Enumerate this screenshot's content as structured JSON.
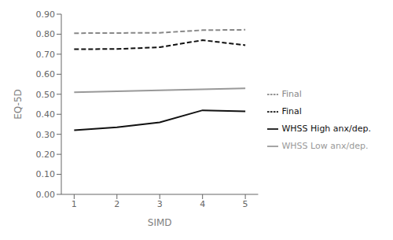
{
  "chart_data": {
    "type": "line",
    "x": [
      1,
      2,
      3,
      4,
      5
    ],
    "xlabel": "SIMD",
    "ylabel": "EQ-5D",
    "xlim": [
      0.7,
      5.3
    ],
    "xticks": [
      1,
      2,
      3,
      4,
      5
    ],
    "ylim": [
      0.0,
      0.9
    ],
    "yticks": [
      {
        "value": 0.0,
        "label": "0.00"
      },
      {
        "value": 0.1,
        "label": "0.10"
      },
      {
        "value": 0.2,
        "label": "0.20"
      },
      {
        "value": 0.3,
        "label": "0.30"
      },
      {
        "value": 0.4,
        "label": "0.40"
      },
      {
        "value": 0.5,
        "label": "0.50"
      },
      {
        "value": 0.6,
        "label": "0.60"
      },
      {
        "value": 0.7,
        "label": "0.70"
      },
      {
        "value": 0.8,
        "label": "0.80"
      },
      {
        "value": 0.9,
        "label": "0.90"
      }
    ],
    "grid": false,
    "legend": "right",
    "series": [
      {
        "name": "WHSS Low anx/dep.",
        "color": "#999999",
        "line_style": "solid",
        "values": [
          0.51,
          0.515,
          0.52,
          0.525,
          0.53
        ]
      },
      {
        "name": "Final",
        "color": "#888888",
        "line_style": "dashed",
        "values": [
          0.805,
          0.806,
          0.807,
          0.82,
          0.822
        ]
      },
      {
        "name": "WHSS High anx/dep.",
        "color": "#111111",
        "line_style": "solid",
        "values": [
          0.32,
          0.335,
          0.36,
          0.42,
          0.415
        ]
      },
      {
        "name": "Final",
        "color": "#111111",
        "line_style": "dashed",
        "values": [
          0.725,
          0.726,
          0.735,
          0.77,
          0.745
        ]
      }
    ]
  }
}
